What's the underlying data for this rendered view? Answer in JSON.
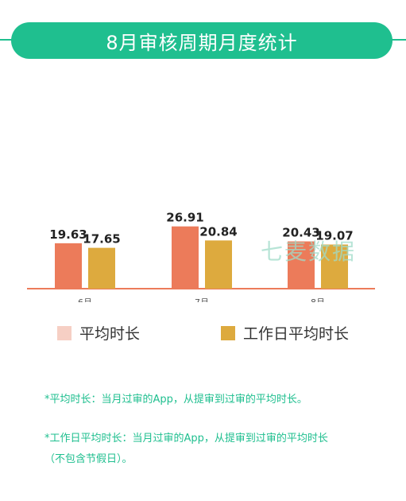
{
  "title": "8月审核周期月度统计",
  "watermark": "七麦数据",
  "colors": {
    "accent": "#1fbf8f",
    "series1": "#ec7b5a",
    "series2": "#ddaa3e",
    "axis": "#ec7b5a",
    "legend1": "#f6cfc4"
  },
  "chart_data": {
    "type": "bar",
    "categories": [
      "6月",
      "7月",
      "8月"
    ],
    "series": [
      {
        "name": "平均时长",
        "values": [
          19.63,
          26.91,
          20.43
        ]
      },
      {
        "name": "工作日平均时长",
        "values": [
          17.65,
          20.84,
          19.07
        ]
      }
    ],
    "ylim": [
      0,
      30
    ],
    "grid": false,
    "legend": "bottom"
  },
  "legend": {
    "item1": "平均时长",
    "item2": "工作日平均时长"
  },
  "notes": {
    "note1": "*平均时长：当月过审的App，从提审到过审的平均时长。",
    "note2": "*工作日平均时长：当月过审的App，从提审到过审的平均时长",
    "note2_cont": "（不包含节假日）。"
  }
}
